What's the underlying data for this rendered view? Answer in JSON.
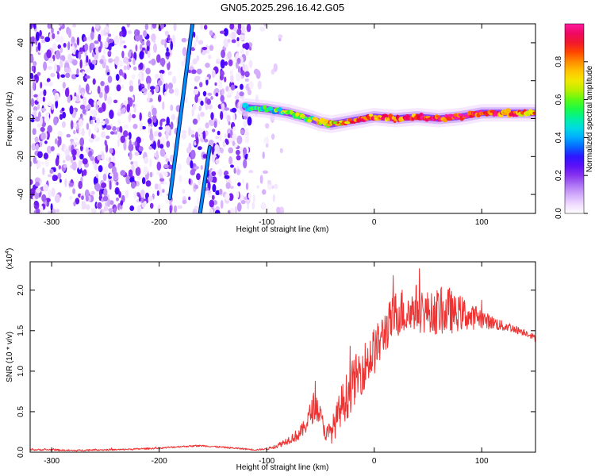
{
  "figure": {
    "title": "GN05.2025.296.16.42.G05"
  },
  "colors": {
    "snr_line": "#ee3333",
    "axis": "#000000",
    "background": "#ffffff"
  },
  "colorbar": {
    "label": "Normalized spectral amplitude",
    "range": [
      0,
      1
    ],
    "ticks": [
      "0.0",
      "0.2",
      "0.4",
      "0.6",
      "0.8"
    ],
    "tick_values": [
      0,
      0.2,
      0.4,
      0.6,
      0.8
    ],
    "colors": [
      "#ffffff",
      "#e6c8ff",
      "#b27cf5",
      "#7d22ee",
      "#3a00ff",
      "#0070ff",
      "#00d2ff",
      "#00f0a0",
      "#22ff22",
      "#b4f000",
      "#ffe600",
      "#ffa000",
      "#ff3c00",
      "#e80048",
      "#ff1aa0"
    ]
  },
  "chart_data": [
    {
      "type": "heatmap",
      "title": "",
      "xlabel": "Height of straight line (km)",
      "ylabel": "Frequency (Hz)",
      "xlim": [
        -320,
        150
      ],
      "ylim": [
        -50,
        50
      ],
      "xticks": [
        -300,
        -200,
        -100,
        0,
        100
      ],
      "xtick_labels": [
        "-300",
        "-200",
        "-100",
        "0",
        "100"
      ],
      "yticks": [
        -40,
        -20,
        0,
        20,
        40
      ],
      "ytick_labels": [
        "-40",
        "-20",
        "0",
        "20",
        "40"
      ],
      "noise_region_x": [
        -320,
        -100
      ],
      "noise_gap_x": [
        -188,
        -172
      ],
      "diagonal_lines": [
        {
          "x_start": -190,
          "y_start": -42,
          "x_end": -169,
          "y_end": 50
        },
        {
          "x_start": -162,
          "y_start": -50,
          "x_end": -153,
          "y_end": -15
        }
      ],
      "ridge": {
        "x": [
          -120,
          -100,
          -80,
          -60,
          -50,
          -40,
          -20,
          0,
          20,
          40,
          60,
          80,
          100,
          120,
          150
        ],
        "y": [
          6,
          5,
          3,
          0,
          -2,
          -3,
          -1,
          1,
          0,
          1,
          0,
          1,
          3,
          3,
          3
        ],
        "amplitude": [
          0.45,
          0.5,
          0.55,
          0.6,
          0.65,
          0.72,
          0.8,
          0.85,
          0.85,
          0.88,
          0.9,
          0.92,
          0.92,
          0.85,
          0.75
        ]
      }
    },
    {
      "type": "line",
      "title": "",
      "xlabel": "Height of straight line (km)",
      "ylabel": "SNR (10 * v/v)",
      "y_multiplier_label": "(x10",
      "y_multiplier_exponent": "4",
      "y_multiplier_close": ")",
      "xlim": [
        -320,
        150
      ],
      "ylim": [
        0,
        2.35
      ],
      "xticks": [
        -300,
        -200,
        -100,
        0,
        100
      ],
      "xtick_labels": [
        "-300",
        "-200",
        "-100",
        "0",
        "100"
      ],
      "yticks": [
        0,
        0.5,
        1,
        1.5,
        2
      ],
      "ytick_labels": [
        "0.0",
        "0.5",
        "1.0",
        "1.5",
        "2.0"
      ],
      "series": [
        {
          "name": "SNR",
          "x": [
            -320,
            -300,
            -280,
            -260,
            -240,
            -220,
            -200,
            -180,
            -160,
            -140,
            -120,
            -110,
            -100,
            -90,
            -80,
            -70,
            -65,
            -60,
            -55,
            -50,
            -45,
            -40,
            -35,
            -30,
            -25,
            -20,
            -15,
            -10,
            -5,
            0,
            5,
            10,
            15,
            20,
            25,
            30,
            35,
            40,
            45,
            50,
            55,
            60,
            65,
            70,
            75,
            80,
            85,
            90,
            95,
            100,
            105,
            110,
            115,
            120,
            125,
            130,
            135,
            140,
            145,
            150
          ],
          "y": [
            0.03,
            0.03,
            0.02,
            0.03,
            0.03,
            0.04,
            0.05,
            0.07,
            0.08,
            0.06,
            0.04,
            0.03,
            0.04,
            0.08,
            0.15,
            0.22,
            0.3,
            0.45,
            0.6,
            0.45,
            0.22,
            0.25,
            0.4,
            0.6,
            0.7,
            0.85,
            0.95,
            1.05,
            1.15,
            1.25,
            1.35,
            1.5,
            1.6,
            1.7,
            1.75,
            1.7,
            1.75,
            1.8,
            1.7,
            1.75,
            1.7,
            1.75,
            1.7,
            1.75,
            1.7,
            1.72,
            1.7,
            1.65,
            1.68,
            1.65,
            1.62,
            1.6,
            1.58,
            1.55,
            1.55,
            1.52,
            1.5,
            1.48,
            1.45,
            1.4
          ],
          "noise_amp": [
            0.01,
            0.01,
            0.01,
            0.01,
            0.01,
            0.01,
            0.01,
            0.01,
            0.01,
            0.01,
            0.01,
            0.01,
            0.01,
            0.03,
            0.05,
            0.08,
            0.1,
            0.15,
            0.2,
            0.12,
            0.1,
            0.15,
            0.2,
            0.25,
            0.3,
            0.3,
            0.3,
            0.3,
            0.3,
            0.3,
            0.28,
            0.28,
            0.28,
            0.3,
            0.3,
            0.28,
            0.25,
            0.3,
            0.25,
            0.25,
            0.25,
            0.3,
            0.25,
            0.3,
            0.22,
            0.22,
            0.2,
            0.15,
            0.15,
            0.12,
            0.1,
            0.08,
            0.08,
            0.06,
            0.06,
            0.05,
            0.05,
            0.04,
            0.04,
            0.04
          ]
        }
      ]
    }
  ]
}
